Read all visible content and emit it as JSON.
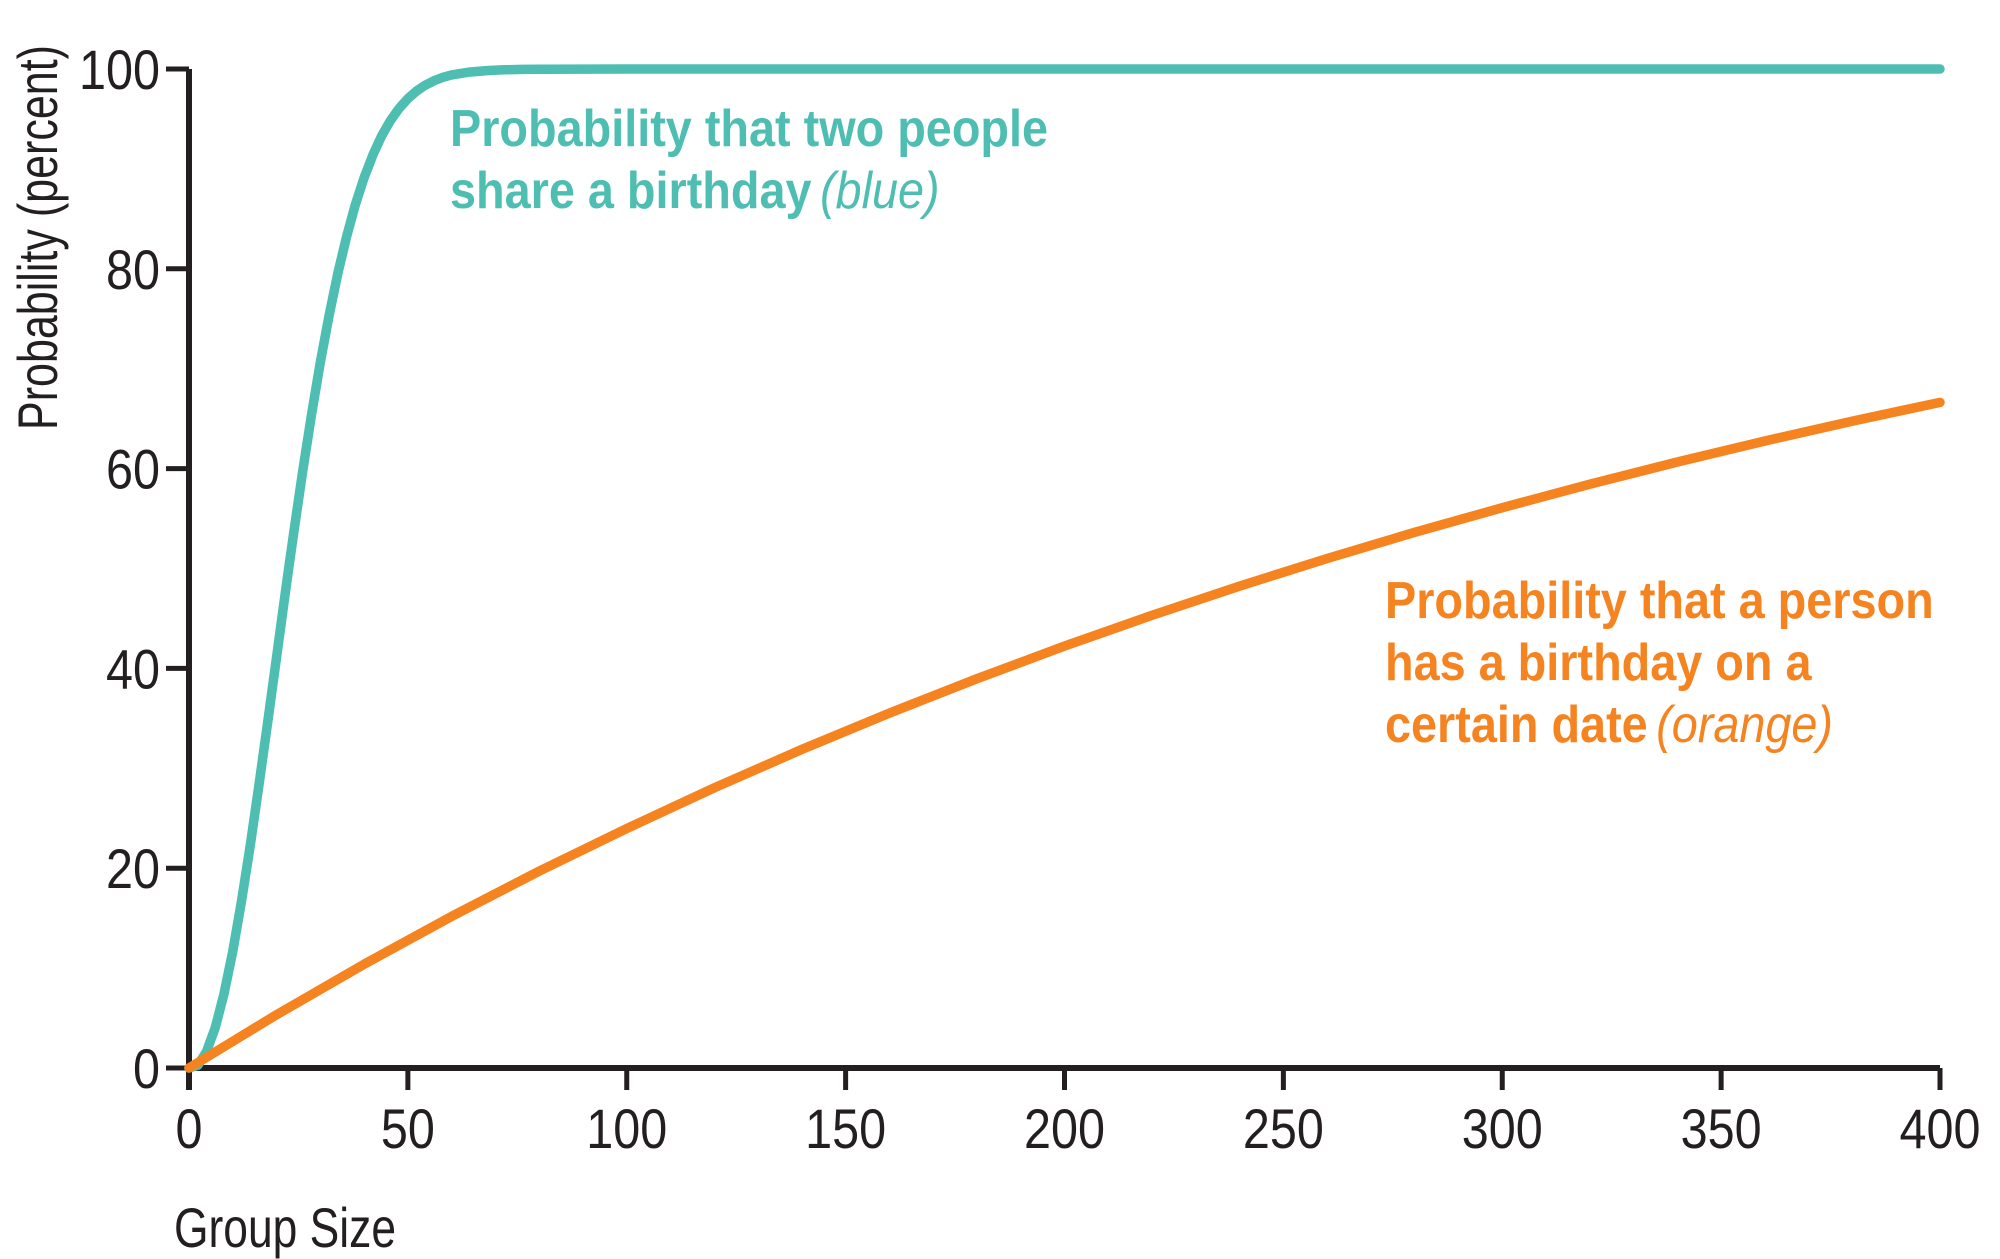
{
  "figure": {
    "background": "#ffffff",
    "axis_color": "#231F20"
  },
  "chart_data": {
    "type": "line",
    "title": "",
    "xlabel": "Group Size",
    "ylabel": "Probability (percent)",
    "xlim": [
      0,
      400
    ],
    "ylim": [
      0,
      100
    ],
    "x_ticks": [
      0,
      50,
      100,
      150,
      200,
      250,
      300,
      350,
      400
    ],
    "y_ticks": [
      0,
      20,
      40,
      60,
      80,
      100
    ],
    "grid": false,
    "legend": "inline-colored-annotations",
    "series": [
      {
        "id": "blue",
        "name": "Probability that two people share a birthday",
        "color": "#4EBEB2",
        "points": [
          [
            0,
            0
          ],
          [
            2,
            0.27
          ],
          [
            4,
            1.64
          ],
          [
            6,
            4.05
          ],
          [
            8,
            7.43
          ],
          [
            10,
            11.69
          ],
          [
            12,
            16.7
          ],
          [
            14,
            22.31
          ],
          [
            16,
            28.36
          ],
          [
            18,
            34.69
          ],
          [
            20,
            41.14
          ],
          [
            22,
            47.57
          ],
          [
            23,
            50.73
          ],
          [
            24,
            53.83
          ],
          [
            26,
            59.82
          ],
          [
            28,
            65.45
          ],
          [
            30,
            70.63
          ],
          [
            32,
            75.33
          ],
          [
            34,
            79.53
          ],
          [
            36,
            83.22
          ],
          [
            38,
            86.41
          ],
          [
            40,
            89.12
          ],
          [
            42,
            91.4
          ],
          [
            44,
            93.29
          ],
          [
            46,
            94.83
          ],
          [
            48,
            96.06
          ],
          [
            50,
            97.04
          ],
          [
            52,
            97.8
          ],
          [
            54,
            98.39
          ],
          [
            56,
            98.83
          ],
          [
            58,
            99.17
          ],
          [
            60,
            99.41
          ],
          [
            64,
            99.69
          ],
          [
            68,
            99.84
          ],
          [
            72,
            99.92
          ],
          [
            76,
            99.96
          ],
          [
            80,
            99.98
          ],
          [
            90,
            99.99
          ],
          [
            100,
            100
          ],
          [
            150,
            100
          ],
          [
            200,
            100
          ],
          [
            250,
            100
          ],
          [
            300,
            100
          ],
          [
            350,
            100
          ],
          [
            400,
            100
          ]
        ]
      },
      {
        "id": "orange",
        "name": "Probability that a person has a birthday on a certain date",
        "color": "#F5831F",
        "points": [
          [
            0,
            0
          ],
          [
            20,
            5.34
          ],
          [
            40,
            10.39
          ],
          [
            60,
            15.18
          ],
          [
            80,
            19.71
          ],
          [
            100,
            23.97
          ],
          [
            120,
            28.05
          ],
          [
            140,
            31.89
          ],
          [
            160,
            35.53
          ],
          [
            180,
            38.97
          ],
          [
            200,
            42.23
          ],
          [
            220,
            45.32
          ],
          [
            240,
            48.24
          ],
          [
            260,
            51.0
          ],
          [
            280,
            53.62
          ],
          [
            300,
            56.09
          ],
          [
            320,
            58.44
          ],
          [
            340,
            60.66
          ],
          [
            360,
            62.76
          ],
          [
            380,
            64.75
          ],
          [
            400,
            66.63
          ]
        ]
      }
    ],
    "annotations": {
      "blue": {
        "line1": "Probability that two people",
        "line2_bold": "share a birthday",
        "line2_italic": "(blue)",
        "color": "#4EBEB2"
      },
      "orange": {
        "line1": "Probability that a person",
        "line2": "has a birthday on a",
        "line3_bold": "certain date",
        "line3_italic": "(orange)",
        "color": "#F5831F"
      }
    }
  }
}
